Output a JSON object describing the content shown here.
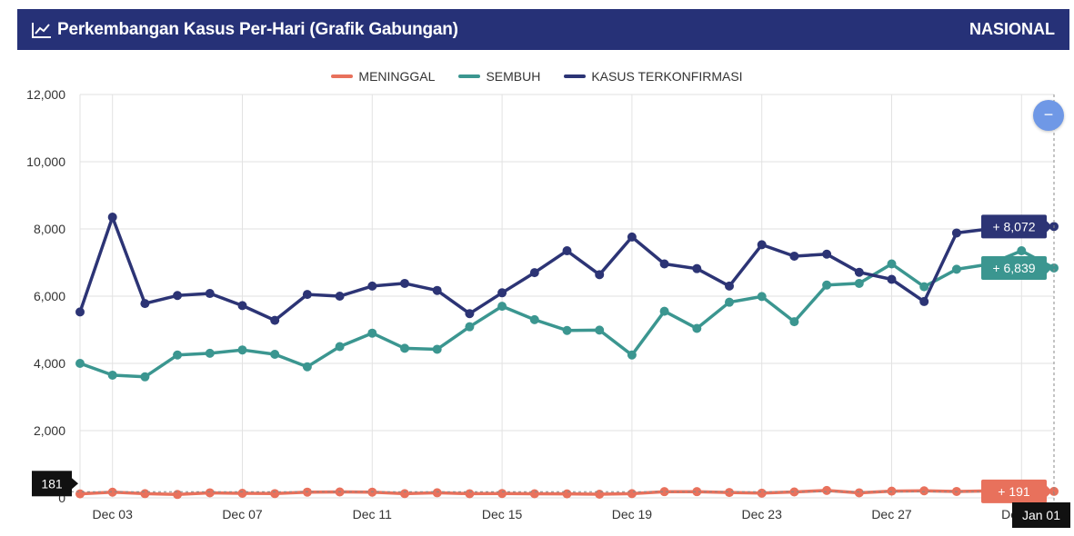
{
  "header": {
    "title": "Perkembangan Kasus Per-Hari (Grafik Gabungan)",
    "region": "NASIONAL",
    "background": "#263177"
  },
  "zoom_button": {
    "label": "−",
    "icon": "zoom-out-icon",
    "color": "#6f98e6"
  },
  "chart_data": {
    "type": "line",
    "x": [
      "Dec 02",
      "Dec 03",
      "Dec 04",
      "Dec 05",
      "Dec 06",
      "Dec 07",
      "Dec 08",
      "Dec 09",
      "Dec 10",
      "Dec 11",
      "Dec 12",
      "Dec 13",
      "Dec 14",
      "Dec 15",
      "Dec 16",
      "Dec 17",
      "Dec 18",
      "Dec 19",
      "Dec 20",
      "Dec 21",
      "Dec 22",
      "Dec 23",
      "Dec 24",
      "Dec 25",
      "Dec 26",
      "Dec 27",
      "Dec 28",
      "Dec 29",
      "Dec 30",
      "Dec 31",
      "Jan 01"
    ],
    "x_ticks": [
      "Dec 03",
      "Dec 07",
      "Dec 11",
      "Dec 15",
      "Dec 19",
      "Dec 23",
      "Dec 27",
      "Dec 31"
    ],
    "y_ticks": [
      "12,000",
      "10,000",
      "8,000",
      "6,000",
      "4,000",
      "2,000",
      "0"
    ],
    "ylim": [
      0,
      12000
    ],
    "grid": true,
    "legend_position": "top",
    "series": [
      {
        "name": "MENINGGAL",
        "color": "#e8715c",
        "values": [
          118,
          169,
          124,
          100,
          150,
          135,
          126,
          170,
          175,
          170,
          125,
          151,
          123,
          130,
          122,
          118,
          108,
          125,
          185,
          185,
          160,
          140,
          175,
          220,
          150,
          200,
          210,
          190,
          205,
          200,
          191
        ]
      },
      {
        "name": "SEMBUH",
        "color": "#3b9690",
        "values": [
          4000,
          3650,
          3600,
          4250,
          4300,
          4400,
          4270,
          3900,
          4500,
          4900,
          4450,
          4420,
          5090,
          5700,
          5300,
          4980,
          4990,
          4250,
          5550,
          5040,
          5820,
          5990,
          5240,
          6330,
          6380,
          6960,
          6280,
          6800,
          6950,
          7350,
          6839
        ]
      },
      {
        "name": "KASUS TERKONFIRMASI",
        "color": "#2c3475",
        "values": [
          5530,
          8350,
          5780,
          6020,
          6080,
          5720,
          5280,
          6050,
          6000,
          6300,
          6380,
          6170,
          5480,
          6100,
          6700,
          7350,
          6640,
          7760,
          6960,
          6820,
          6300,
          7530,
          7190,
          7250,
          6710,
          6500,
          5840,
          7880,
          8000,
          8050,
          8072
        ]
      }
    ],
    "tooltips": [
      {
        "series": "KASUS TERKONFIRMASI",
        "text": "+ 8,072"
      },
      {
        "series": "SEMBUH",
        "text": "+ 6,839"
      },
      {
        "series": "MENINGGAL",
        "text": "+ 191"
      }
    ],
    "crosshair_x_label": "Jan 01",
    "crosshair_y_label": "181"
  }
}
